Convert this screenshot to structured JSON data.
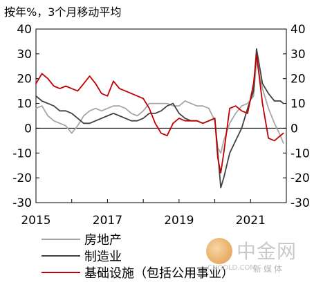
{
  "chart_data": {
    "type": "line",
    "unit_label": "按年%，3个月移动平均",
    "x_ticks": [
      "2015",
      "2017",
      "2019",
      "2021"
    ],
    "y_ticks": [
      -30,
      -20,
      -10,
      0,
      10,
      20,
      30,
      40
    ],
    "ylim": [
      -30,
      40
    ],
    "x_range": [
      "2015-01",
      "2021-12"
    ],
    "grid": false,
    "legend_position": "bottom",
    "series": [
      {
        "name": "房地产",
        "color": "#a6a6a6",
        "points": [
          [
            "2015-01",
            8
          ],
          [
            "2015-03",
            9
          ],
          [
            "2015-05",
            5
          ],
          [
            "2015-07",
            3
          ],
          [
            "2015-09",
            2
          ],
          [
            "2015-11",
            1
          ],
          [
            "2016-01",
            -2
          ],
          [
            "2016-03",
            1
          ],
          [
            "2016-05",
            5
          ],
          [
            "2016-07",
            7
          ],
          [
            "2016-09",
            8
          ],
          [
            "2016-11",
            7
          ],
          [
            "2017-01",
            8
          ],
          [
            "2017-03",
            9
          ],
          [
            "2017-05",
            9
          ],
          [
            "2017-07",
            8
          ],
          [
            "2017-09",
            6
          ],
          [
            "2017-11",
            5
          ],
          [
            "2018-01",
            7
          ],
          [
            "2018-03",
            10
          ],
          [
            "2018-05",
            10
          ],
          [
            "2018-07",
            10
          ],
          [
            "2018-09",
            10
          ],
          [
            "2018-11",
            9
          ],
          [
            "2019-01",
            9
          ],
          [
            "2019-03",
            11
          ],
          [
            "2019-05",
            10
          ],
          [
            "2019-07",
            9
          ],
          [
            "2019-09",
            9
          ],
          [
            "2019-11",
            8
          ],
          [
            "2020-01",
            3
          ],
          [
            "2020-02",
            -8
          ],
          [
            "2020-03",
            -10
          ],
          [
            "2020-04",
            -5
          ],
          [
            "2020-06",
            2
          ],
          [
            "2020-08",
            6
          ],
          [
            "2020-10",
            9
          ],
          [
            "2020-12",
            10
          ],
          [
            "2021-02",
            13
          ],
          [
            "2021-03",
            27
          ],
          [
            "2021-05",
            16
          ],
          [
            "2021-07",
            8
          ],
          [
            "2021-09",
            2
          ],
          [
            "2021-11",
            -3
          ],
          [
            "2021-12",
            -6
          ]
        ]
      },
      {
        "name": "制造业",
        "color": "#404040",
        "points": [
          [
            "2015-01",
            13
          ],
          [
            "2015-03",
            11
          ],
          [
            "2015-05",
            10
          ],
          [
            "2015-07",
            9
          ],
          [
            "2015-09",
            7
          ],
          [
            "2015-11",
            7
          ],
          [
            "2016-01",
            6
          ],
          [
            "2016-03",
            4
          ],
          [
            "2016-05",
            2
          ],
          [
            "2016-07",
            2
          ],
          [
            "2016-09",
            3
          ],
          [
            "2016-11",
            4
          ],
          [
            "2017-01",
            5
          ],
          [
            "2017-03",
            6
          ],
          [
            "2017-05",
            5
          ],
          [
            "2017-07",
            4
          ],
          [
            "2017-09",
            3
          ],
          [
            "2017-11",
            3
          ],
          [
            "2018-01",
            4
          ],
          [
            "2018-03",
            6
          ],
          [
            "2018-05",
            6
          ],
          [
            "2018-07",
            7
          ],
          [
            "2018-09",
            9
          ],
          [
            "2018-11",
            10
          ],
          [
            "2019-01",
            6
          ],
          [
            "2019-03",
            4
          ],
          [
            "2019-05",
            3
          ],
          [
            "2019-07",
            3
          ],
          [
            "2019-09",
            2
          ],
          [
            "2019-11",
            3
          ],
          [
            "2020-01",
            4
          ],
          [
            "2020-02",
            -10
          ],
          [
            "2020-03",
            -24
          ],
          [
            "2020-04",
            -20
          ],
          [
            "2020-06",
            -10
          ],
          [
            "2020-08",
            -5
          ],
          [
            "2020-10",
            0
          ],
          [
            "2020-12",
            8
          ],
          [
            "2021-02",
            15
          ],
          [
            "2021-03",
            32
          ],
          [
            "2021-05",
            18
          ],
          [
            "2021-07",
            14
          ],
          [
            "2021-09",
            11
          ],
          [
            "2021-11",
            11
          ],
          [
            "2021-12",
            10
          ]
        ]
      },
      {
        "name": "基础设施（包括公用事业）",
        "color": "#c00000",
        "points": [
          [
            "2015-01",
            18
          ],
          [
            "2015-03",
            22
          ],
          [
            "2015-05",
            20
          ],
          [
            "2015-07",
            17
          ],
          [
            "2015-09",
            16
          ],
          [
            "2015-11",
            17
          ],
          [
            "2016-01",
            16
          ],
          [
            "2016-03",
            15
          ],
          [
            "2016-05",
            18
          ],
          [
            "2016-07",
            21
          ],
          [
            "2016-09",
            18
          ],
          [
            "2016-11",
            14
          ],
          [
            "2017-01",
            13
          ],
          [
            "2017-03",
            19
          ],
          [
            "2017-05",
            16
          ],
          [
            "2017-07",
            15
          ],
          [
            "2017-09",
            14
          ],
          [
            "2017-11",
            13
          ],
          [
            "2018-01",
            12
          ],
          [
            "2018-03",
            8
          ],
          [
            "2018-05",
            2
          ],
          [
            "2018-07",
            -2
          ],
          [
            "2018-09",
            -3
          ],
          [
            "2018-11",
            2
          ],
          [
            "2019-01",
            4
          ],
          [
            "2019-03",
            3
          ],
          [
            "2019-05",
            3
          ],
          [
            "2019-07",
            3
          ],
          [
            "2019-09",
            2
          ],
          [
            "2019-11",
            3
          ],
          [
            "2020-01",
            4
          ],
          [
            "2020-02",
            -12
          ],
          [
            "2020-03",
            -18
          ],
          [
            "2020-04",
            -10
          ],
          [
            "2020-06",
            8
          ],
          [
            "2020-08",
            9
          ],
          [
            "2020-10",
            7
          ],
          [
            "2020-12",
            6
          ],
          [
            "2021-02",
            18
          ],
          [
            "2021-03",
            30
          ],
          [
            "2021-05",
            10
          ],
          [
            "2021-07",
            -4
          ],
          [
            "2021-09",
            -5
          ],
          [
            "2021-11",
            -3
          ],
          [
            "2021-12",
            -2
          ]
        ]
      }
    ]
  },
  "watermark": {
    "logo": "cngold-coin-logo",
    "name": "中金网",
    "url": "CNGOLD.COM",
    "sub": "新媒体"
  }
}
